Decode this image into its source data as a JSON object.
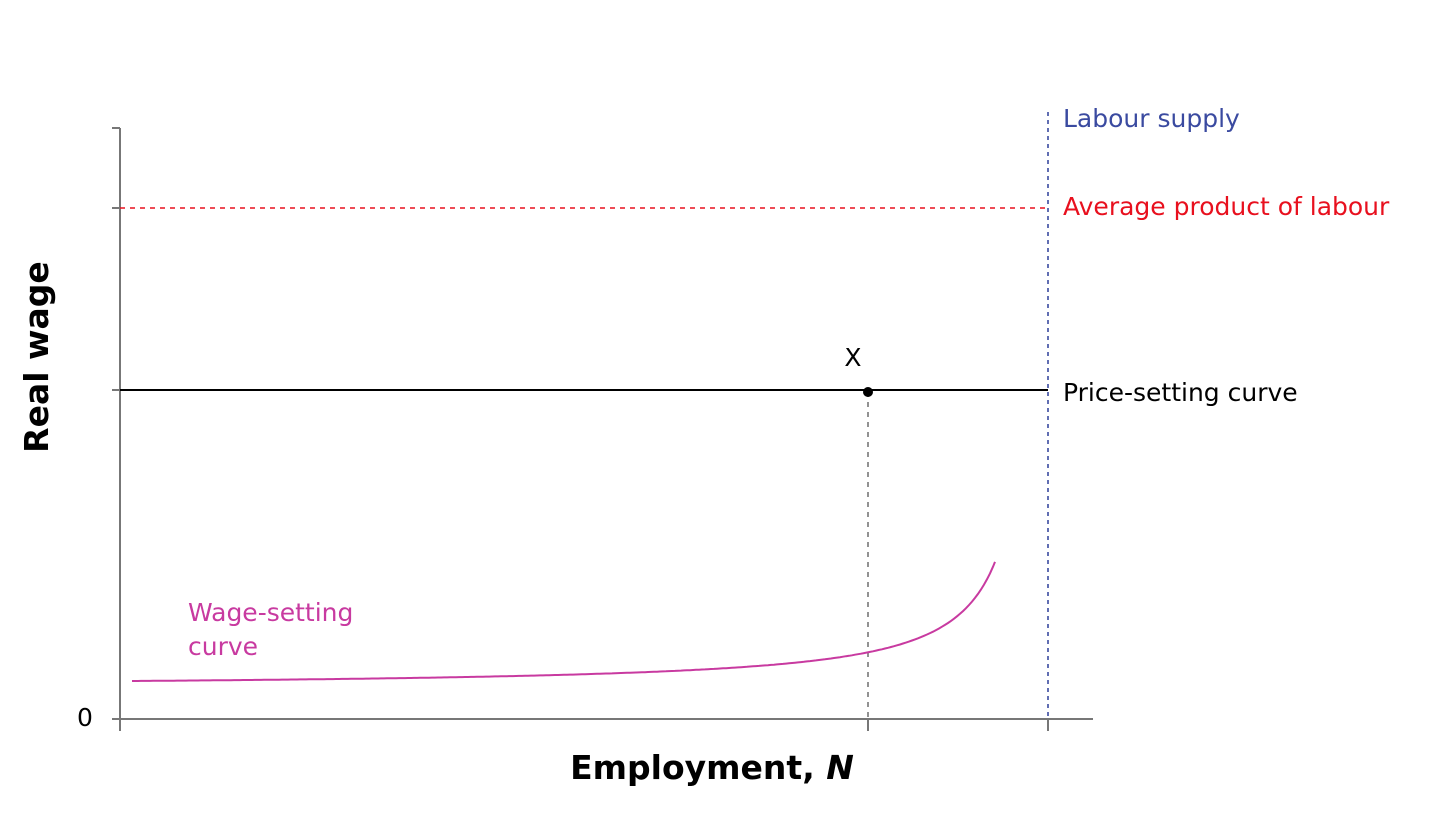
{
  "diagram": {
    "y_axis_title": "Real wage",
    "x_axis_title_main": "Employment, ",
    "x_axis_title_var": "N",
    "origin_label": "0",
    "point_label": "X",
    "labels": {
      "labour_supply": "Labour supply",
      "average_product": "Average product of labour",
      "price_setting": "Price-setting curve",
      "wage_setting_line1": "Wage-setting",
      "wage_setting_line2": "curve"
    },
    "colors": {
      "labour_supply": "#3a4aa0",
      "average_product": "#e8101e",
      "price_setting": "#000000",
      "wage_setting": "#c83aa0",
      "axis": "#777777",
      "guide": "#777777"
    }
  }
}
